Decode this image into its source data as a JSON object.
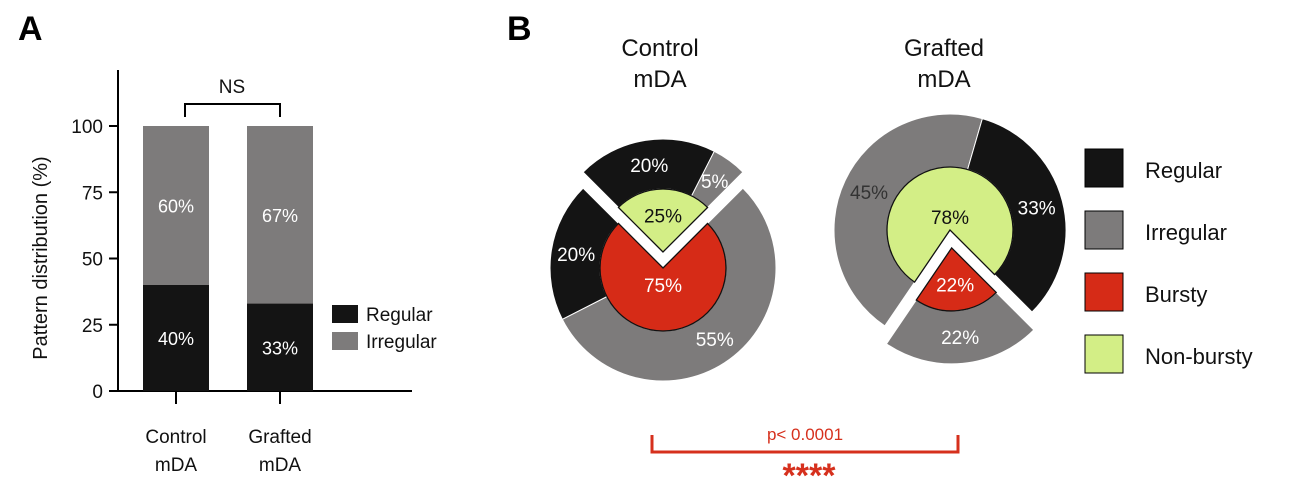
{
  "panel_a": {
    "letter": "A"
  },
  "panel_b": {
    "letter": "B"
  },
  "colors": {
    "regular": "#141414",
    "irregular": "#7d7b7b",
    "bursty": "#d62b17",
    "non_bursty": "#d3ee86",
    "significance": "#d6301d"
  },
  "chart_data": [
    {
      "type": "bar",
      "stacked": true,
      "categories": [
        "Control mDA",
        "Grafted mDA"
      ],
      "category_lines": [
        [
          "Control",
          "mDA"
        ],
        [
          "Grafted",
          "mDA"
        ]
      ],
      "series": [
        {
          "name": "Regular",
          "values": [
            40,
            33
          ],
          "labels": [
            "40%",
            "33%"
          ]
        },
        {
          "name": "Irregular",
          "values": [
            60,
            67
          ],
          "labels": [
            "60%",
            "67%"
          ]
        }
      ],
      "ylabel": "Pattern distribution (%)",
      "ylim": [
        0,
        100
      ],
      "yticks": [
        0,
        25,
        50,
        75,
        100
      ],
      "yticklabels": [
        "0",
        "25",
        "50",
        "75",
        "100"
      ],
      "legend": [
        "Regular",
        "Irregular"
      ],
      "legend_position": "right",
      "annotation": "NS"
    },
    {
      "type": "pie",
      "title_lines": [
        "Control",
        "mDA"
      ],
      "inner": [
        {
          "name": "Non-bursty",
          "value": 25,
          "label": "25%"
        },
        {
          "name": "Bursty",
          "value": 75,
          "label": "75%"
        }
      ],
      "outer_non_bursty": [
        {
          "name": "Regular",
          "value": 20,
          "label": "20%"
        },
        {
          "name": "Irregular",
          "value": 5,
          "label": "5%"
        }
      ],
      "outer_bursty": [
        {
          "name": "Irregular",
          "value": 55,
          "label": "55%"
        },
        {
          "name": "Regular",
          "value": 20,
          "label": "20%"
        }
      ]
    },
    {
      "type": "pie",
      "title_lines": [
        "Grafted",
        "mDA"
      ],
      "inner": [
        {
          "name": "Bursty",
          "value": 22,
          "label": "22%"
        },
        {
          "name": "Non-bursty",
          "value": 78,
          "label": "78%"
        }
      ],
      "outer_bursty": [
        {
          "name": "Irregular",
          "value": 22,
          "label": "22%"
        }
      ],
      "outer_non_bursty": [
        {
          "name": "Irregular",
          "value": 45,
          "label": "45%"
        },
        {
          "name": "Regular",
          "value": 33,
          "label": "33%"
        }
      ]
    }
  ],
  "legend_b": [
    "Regular",
    "Irregular",
    "Bursty",
    "Non-bursty"
  ],
  "comparison": {
    "p_value": "p< 0.0001",
    "stars": "****"
  }
}
